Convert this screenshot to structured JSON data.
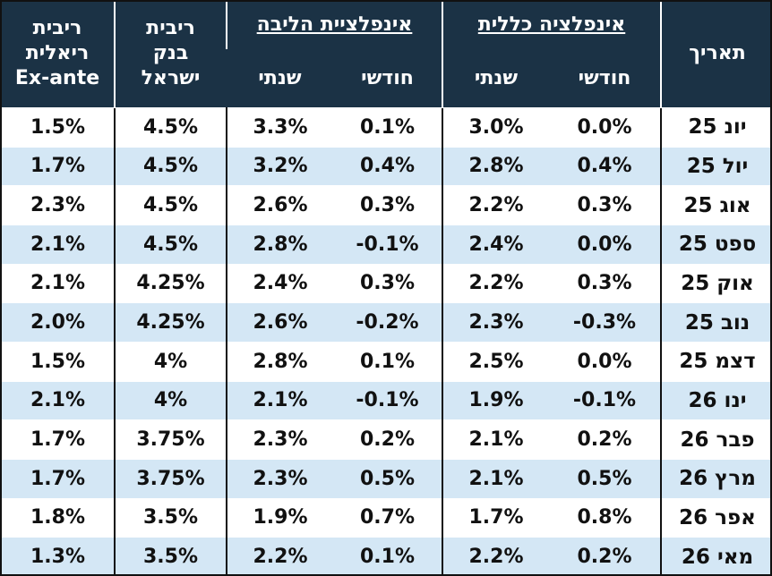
{
  "chart_data": {
    "type": "table",
    "header": {
      "real_rate": [
        "ריבית",
        "ריאלית",
        "Ex-ante"
      ],
      "boi_rate": [
        "ריבית",
        "בנק",
        "ישראל"
      ],
      "core_inflation": "אינפלציית הליבה",
      "headline_inflation": "אינפלציה כללית",
      "annual": "שנתי",
      "monthly": "חודשי",
      "date": "תאריך"
    },
    "rows": [
      {
        "date": "יונ 25",
        "headline_monthly": "0.0%",
        "headline_annual": "3.0%",
        "core_monthly": "0.1%",
        "core_annual": "3.3%",
        "boi_rate": "4.5%",
        "real_rate": "1.5%"
      },
      {
        "date": "יול 25",
        "headline_monthly": "0.4%",
        "headline_annual": "2.8%",
        "core_monthly": "0.4%",
        "core_annual": "3.2%",
        "boi_rate": "4.5%",
        "real_rate": "1.7%"
      },
      {
        "date": "אוג 25",
        "headline_monthly": "0.3%",
        "headline_annual": "2.2%",
        "core_monthly": "0.3%",
        "core_annual": "2.6%",
        "boi_rate": "4.5%",
        "real_rate": "2.3%"
      },
      {
        "date": "ספט 25",
        "headline_monthly": "0.0%",
        "headline_annual": "2.4%",
        "core_monthly": "-0.1%",
        "core_annual": "2.8%",
        "boi_rate": "4.5%",
        "real_rate": "2.1%"
      },
      {
        "date": "אוק 25",
        "headline_monthly": "0.3%",
        "headline_annual": "2.2%",
        "core_monthly": "0.3%",
        "core_annual": "2.4%",
        "boi_rate": "4.25%",
        "real_rate": "2.1%"
      },
      {
        "date": "נוב 25",
        "headline_monthly": "-0.3%",
        "headline_annual": "2.3%",
        "core_monthly": "-0.2%",
        "core_annual": "2.6%",
        "boi_rate": "4.25%",
        "real_rate": "2.0%"
      },
      {
        "date": "דצמ 25",
        "headline_monthly": "0.0%",
        "headline_annual": "2.5%",
        "core_monthly": "0.1%",
        "core_annual": "2.8%",
        "boi_rate": "4%",
        "real_rate": "1.5%"
      },
      {
        "date": "ינו 26",
        "headline_monthly": "-0.1%",
        "headline_annual": "1.9%",
        "core_monthly": "-0.1%",
        "core_annual": "2.1%",
        "boi_rate": "4%",
        "real_rate": "2.1%"
      },
      {
        "date": "פבר 26",
        "headline_monthly": "0.2%",
        "headline_annual": "2.1%",
        "core_monthly": "0.2%",
        "core_annual": "2.3%",
        "boi_rate": "3.75%",
        "real_rate": "1.7%"
      },
      {
        "date": "מרץ 26",
        "headline_monthly": "0.5%",
        "headline_annual": "2.1%",
        "core_monthly": "0.5%",
        "core_annual": "2.3%",
        "boi_rate": "3.75%",
        "real_rate": "1.7%"
      },
      {
        "date": "אפר 26",
        "headline_monthly": "0.8%",
        "headline_annual": "1.7%",
        "core_monthly": "0.7%",
        "core_annual": "1.9%",
        "boi_rate": "3.5%",
        "real_rate": "1.8%"
      },
      {
        "date": "מאי 26",
        "headline_monthly": "0.2%",
        "headline_annual": "2.2%",
        "core_monthly": "0.1%",
        "core_annual": "2.2%",
        "boi_rate": "3.5%",
        "real_rate": "1.3%"
      }
    ]
  }
}
